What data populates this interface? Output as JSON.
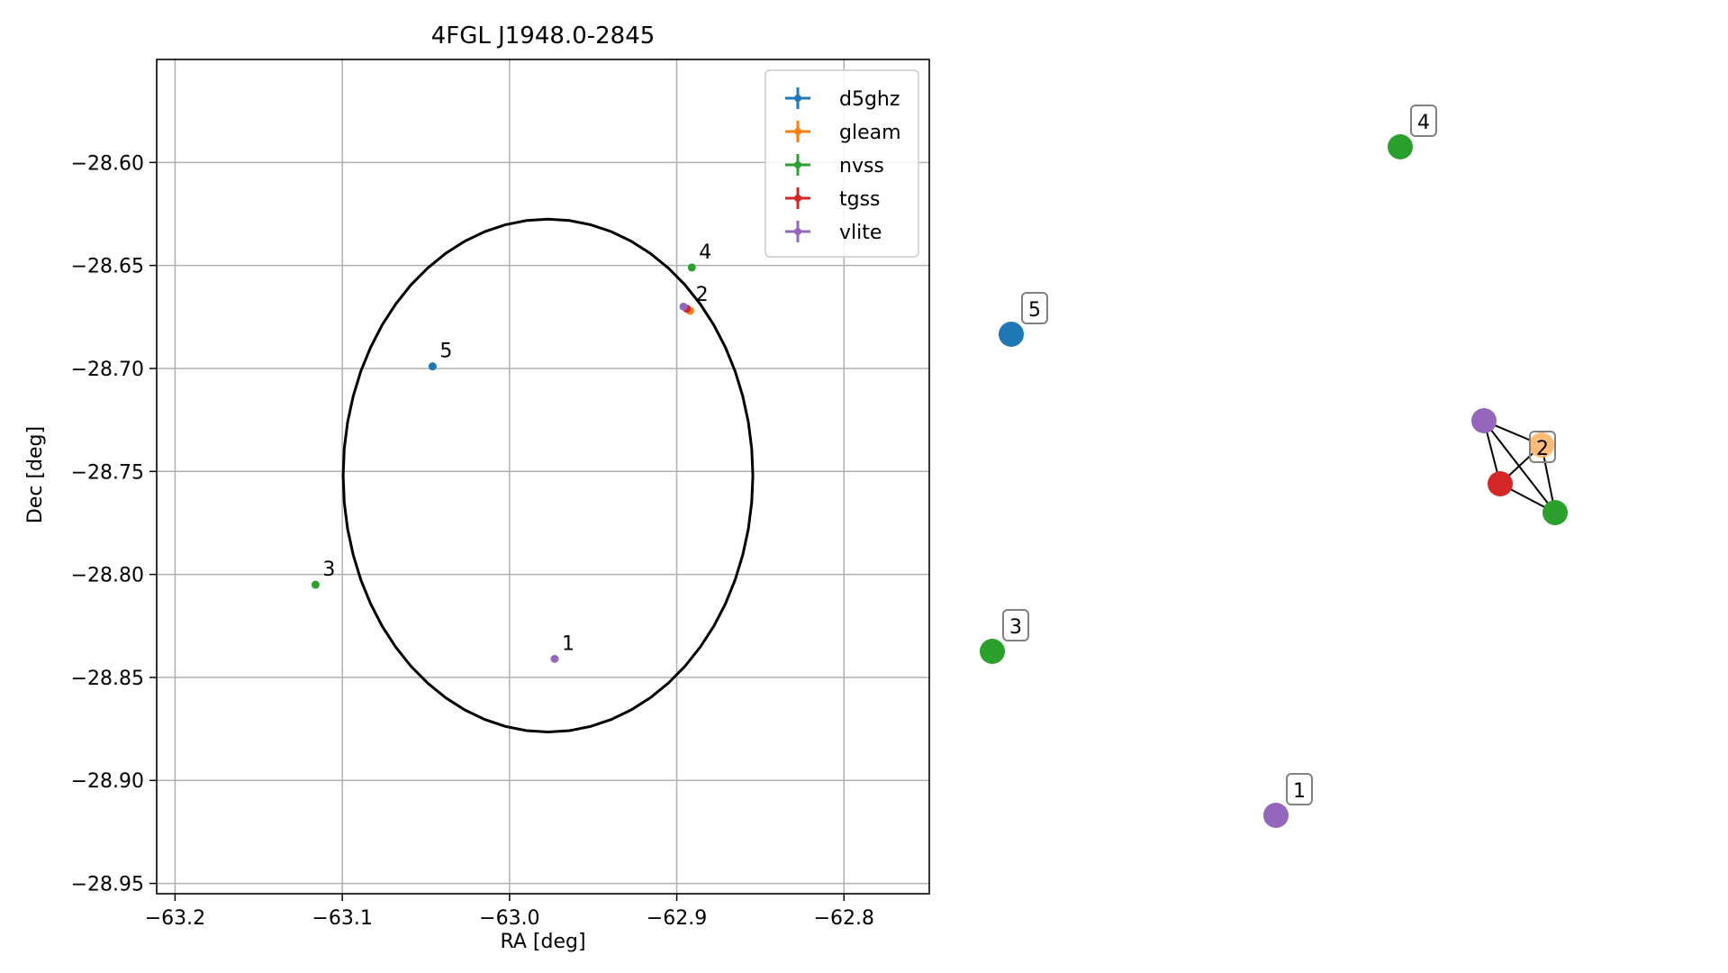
{
  "chart_data": [
    {
      "type": "scatter",
      "title": "4FGL J1948.0-2845",
      "xlabel": "RA [deg]",
      "ylabel": "Dec [deg]",
      "xlim": [
        -63.211,
        -62.749
      ],
      "ylim": [
        -28.955,
        -28.55
      ],
      "x_ticks": [
        -63.2,
        -63.1,
        -63.0,
        -62.9,
        -62.8
      ],
      "x_tick_labels": [
        "−63.2",
        "−63.1",
        "−63.0",
        "−62.9",
        "−62.8"
      ],
      "y_ticks": [
        -28.6,
        -28.65,
        -28.7,
        -28.75,
        -28.8,
        -28.85,
        -28.9,
        -28.95
      ],
      "y_tick_labels": [
        "−28.60",
        "−28.65",
        "−28.70",
        "−28.75",
        "−28.80",
        "−28.85",
        "−28.90",
        "−28.95"
      ],
      "grid": true,
      "legend_position": "top-right",
      "legend": [
        {
          "name": "d5ghz",
          "color": "#1f77b4"
        },
        {
          "name": "gleam",
          "color": "#ff7f0e"
        },
        {
          "name": "nvss",
          "color": "#2ca02c"
        },
        {
          "name": "tgss",
          "color": "#d62728"
        },
        {
          "name": "vlite",
          "color": "#9467bd"
        }
      ],
      "ellipse": {
        "center_ra": -62.977,
        "center_dec": -28.752,
        "semi_ra": 0.1225,
        "semi_dec": 0.1245,
        "color": "#000000"
      },
      "points": [
        {
          "survey": "vlite",
          "ra": -62.973,
          "dec": -28.841,
          "color": "#9467bd"
        },
        {
          "survey": "gleam",
          "ra": -62.892,
          "dec": -28.672,
          "color": "#ff7f0e"
        },
        {
          "survey": "tgss",
          "ra": -62.894,
          "dec": -28.671,
          "color": "#d62728"
        },
        {
          "survey": "vlite",
          "ra": -62.896,
          "dec": -28.67,
          "color": "#9467bd"
        },
        {
          "survey": "nvss",
          "ra": -63.116,
          "dec": -28.805,
          "color": "#2ca02c"
        },
        {
          "survey": "nvss",
          "ra": -62.891,
          "dec": -28.651,
          "color": "#2ca02c"
        },
        {
          "survey": "d5ghz",
          "ra": -63.046,
          "dec": -28.699,
          "color": "#1f77b4"
        }
      ],
      "cluster_labels": [
        {
          "text": "1",
          "ra": -62.973,
          "dec": -28.841
        },
        {
          "text": "2",
          "ra": -62.893,
          "dec": -28.6715
        },
        {
          "text": "3",
          "ra": -63.116,
          "dec": -28.805
        },
        {
          "text": "4",
          "ra": -62.891,
          "dec": -28.651
        },
        {
          "text": "5",
          "ra": -63.046,
          "dec": -28.699
        }
      ]
    },
    {
      "type": "graph",
      "nodes": [
        {
          "id": "1a",
          "color": "#9467bd"
        },
        {
          "id": "2a",
          "color": "#9467bd"
        },
        {
          "id": "2b",
          "color": "#d62728"
        },
        {
          "id": "2c",
          "color": "#2ca02c"
        },
        {
          "id": "2d",
          "color": "#ffbb78"
        },
        {
          "id": "3a",
          "color": "#2ca02c"
        },
        {
          "id": "4a",
          "color": "#2ca02c"
        },
        {
          "id": "5a",
          "color": "#1f77b4"
        }
      ],
      "edges": [
        [
          "2a",
          "2b"
        ],
        [
          "2a",
          "2d"
        ],
        [
          "2a",
          "2c"
        ],
        [
          "2b",
          "2d"
        ],
        [
          "2b",
          "2c"
        ],
        [
          "2d",
          "2c"
        ]
      ],
      "labels": [
        {
          "text": "1",
          "node": "1a"
        },
        {
          "text": "2",
          "node": "2d"
        },
        {
          "text": "3",
          "node": "3a"
        },
        {
          "text": "4",
          "node": "4a"
        },
        {
          "text": "5",
          "node": "5a"
        }
      ]
    }
  ]
}
